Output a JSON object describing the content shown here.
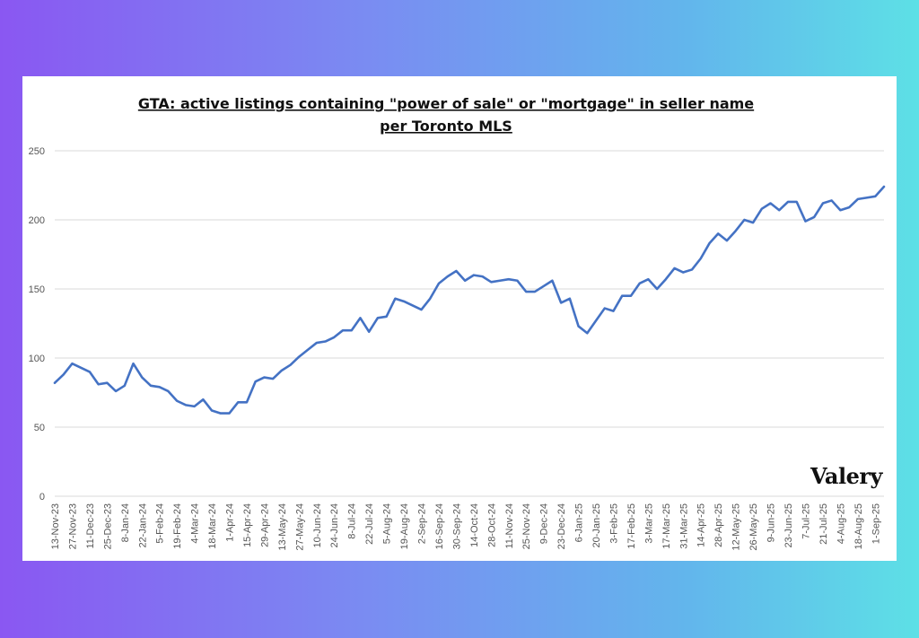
{
  "chart_data": {
    "type": "line",
    "title_line1": "GTA: active listings containing \"power of sale\" or \"mortgage\" in seller name",
    "title_line2": "per Toronto MLS",
    "xlabel": "",
    "ylabel": "",
    "ylim": [
      0,
      250
    ],
    "yticks": [
      0,
      50,
      100,
      150,
      200,
      250
    ],
    "grid": true,
    "legend": "none",
    "line_color": "#4472c4",
    "x_tick_labels": [
      "13-Nov-23",
      "27-Nov-23",
      "11-Dec-23",
      "25-Dec-23",
      "8-Jan-24",
      "22-Jan-24",
      "5-Feb-24",
      "19-Feb-24",
      "4-Mar-24",
      "18-Mar-24",
      "1-Apr-24",
      "15-Apr-24",
      "29-Apr-24",
      "13-May-24",
      "27-May-24",
      "10-Jun-24",
      "24-Jun-24",
      "8-Jul-24",
      "22-Jul-24",
      "5-Aug-24",
      "19-Aug-24",
      "2-Sep-24",
      "16-Sep-24",
      "30-Sep-24",
      "14-Oct-24",
      "28-Oct-24",
      "11-Nov-24",
      "25-Nov-24",
      "9-Dec-24",
      "23-Dec-24",
      "6-Jan-25",
      "20-Jan-25",
      "3-Feb-25",
      "17-Feb-25",
      "3-Mar-25",
      "17-Mar-25",
      "31-Mar-25",
      "14-Apr-25",
      "28-Apr-25",
      "12-May-25",
      "26-May-25",
      "9-Jun-25",
      "23-Jun-25",
      "7-Jul-25",
      "21-Jul-25",
      "4-Aug-25",
      "18-Aug-25",
      "1-Sep-25"
    ],
    "series": [
      {
        "values": [
          82,
          88,
          96,
          93,
          90,
          81,
          82,
          76,
          80,
          96,
          86,
          80,
          79,
          76,
          69,
          66,
          65,
          70,
          62,
          60,
          60,
          68,
          68,
          83,
          86,
          85,
          91,
          95,
          101,
          106,
          111,
          112,
          115,
          120,
          120,
          129,
          119,
          129,
          130,
          143,
          141,
          138,
          135,
          143,
          154,
          159,
          163,
          156,
          160,
          159,
          155,
          156,
          157,
          156,
          148,
          148,
          152,
          156,
          140,
          143,
          123,
          118,
          127,
          136,
          134,
          145,
          145,
          154,
          157,
          150,
          157,
          165,
          162,
          164,
          172,
          183,
          190,
          185,
          192,
          200,
          198,
          208,
          212,
          207,
          213,
          213,
          199,
          202,
          212,
          214,
          207,
          209,
          215,
          216,
          217,
          224
        ]
      }
    ]
  },
  "watermark": {
    "logo_text": "Valery"
  }
}
